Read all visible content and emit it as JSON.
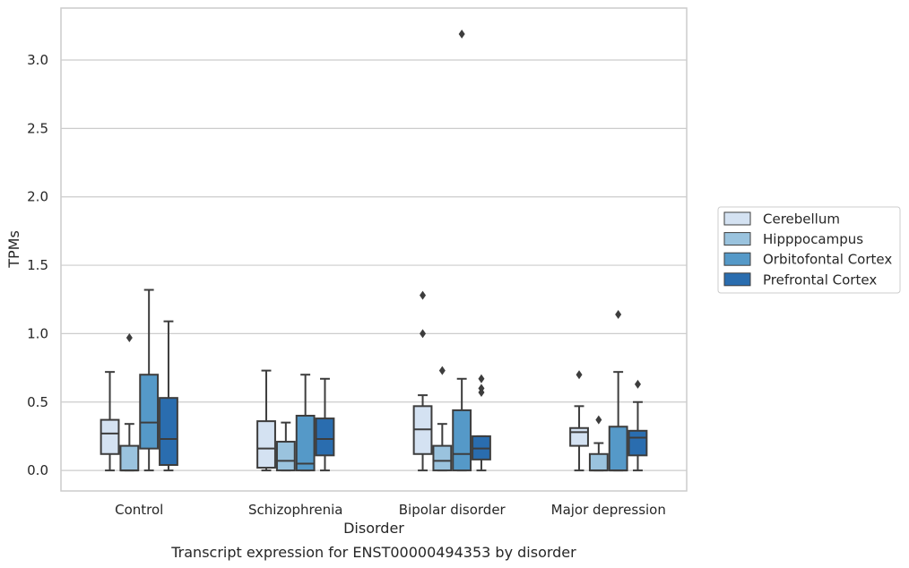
{
  "chart_data": {
    "type": "box",
    "xlabel": "Disorder",
    "ylabel": "TPMs",
    "caption": "Transcript expression for ENST00000494353 by disorder",
    "ylim": [
      -0.15,
      3.38
    ],
    "yticks": [
      "0.0",
      "0.5",
      "1.0",
      "1.5",
      "2.0",
      "2.5",
      "3.0"
    ],
    "grid": "horizontal",
    "legend_position": "right",
    "categories": [
      "Control",
      "Schizophrenia",
      "Bipolar disorder",
      "Major depression"
    ],
    "series": [
      {
        "name": "Cerebellum",
        "color": "#d4e2f2",
        "boxes": [
          {
            "whisker_low": 0.0,
            "q1": 0.12,
            "median": 0.27,
            "q3": 0.37,
            "whisker_high": 0.72,
            "outliers": []
          },
          {
            "whisker_low": 0.0,
            "q1": 0.02,
            "median": 0.16,
            "q3": 0.36,
            "whisker_high": 0.73,
            "outliers": []
          },
          {
            "whisker_low": 0.0,
            "q1": 0.12,
            "median": 0.3,
            "q3": 0.47,
            "whisker_high": 0.55,
            "outliers": [
              1.0,
              1.28
            ]
          },
          {
            "whisker_low": 0.0,
            "q1": 0.18,
            "median": 0.28,
            "q3": 0.31,
            "whisker_high": 0.47,
            "outliers": [
              0.7
            ]
          }
        ]
      },
      {
        "name": "Hipppocampus",
        "color": "#9ac3de",
        "boxes": [
          {
            "whisker_low": 0.0,
            "q1": 0.0,
            "median": 0.0,
            "q3": 0.18,
            "whisker_high": 0.34,
            "outliers": [
              0.97
            ]
          },
          {
            "whisker_low": 0.0,
            "q1": 0.0,
            "median": 0.07,
            "q3": 0.21,
            "whisker_high": 0.35,
            "outliers": []
          },
          {
            "whisker_low": 0.0,
            "q1": 0.0,
            "median": 0.07,
            "q3": 0.18,
            "whisker_high": 0.34,
            "outliers": [
              0.73
            ]
          },
          {
            "whisker_low": 0.0,
            "q1": 0.0,
            "median": 0.0,
            "q3": 0.12,
            "whisker_high": 0.2,
            "outliers": [
              0.37
            ]
          }
        ]
      },
      {
        "name": "Orbitofontal Cortex",
        "color": "#5599c8",
        "boxes": [
          {
            "whisker_low": 0.0,
            "q1": 0.16,
            "median": 0.35,
            "q3": 0.7,
            "whisker_high": 1.32,
            "outliers": []
          },
          {
            "whisker_low": 0.0,
            "q1": 0.0,
            "median": 0.05,
            "q3": 0.4,
            "whisker_high": 0.7,
            "outliers": []
          },
          {
            "whisker_low": 0.0,
            "q1": 0.0,
            "median": 0.12,
            "q3": 0.44,
            "whisker_high": 0.67,
            "outliers": [
              3.19
            ]
          },
          {
            "whisker_low": 0.0,
            "q1": 0.0,
            "median": 0.0,
            "q3": 0.32,
            "whisker_high": 0.72,
            "outliers": [
              1.14
            ]
          }
        ]
      },
      {
        "name": "Prefrontal Cortex",
        "color": "#2a6daf",
        "boxes": [
          {
            "whisker_low": 0.0,
            "q1": 0.04,
            "median": 0.23,
            "q3": 0.53,
            "whisker_high": 1.09,
            "outliers": []
          },
          {
            "whisker_low": 0.0,
            "q1": 0.11,
            "median": 0.23,
            "q3": 0.38,
            "whisker_high": 0.67,
            "outliers": []
          },
          {
            "whisker_low": 0.0,
            "q1": 0.08,
            "median": 0.16,
            "q3": 0.25,
            "whisker_high": 0.25,
            "outliers": [
              0.57,
              0.6,
              0.67
            ]
          },
          {
            "whisker_low": 0.0,
            "q1": 0.11,
            "median": 0.24,
            "q3": 0.29,
            "whisker_high": 0.5,
            "outliers": [
              0.63
            ]
          }
        ]
      }
    ]
  }
}
